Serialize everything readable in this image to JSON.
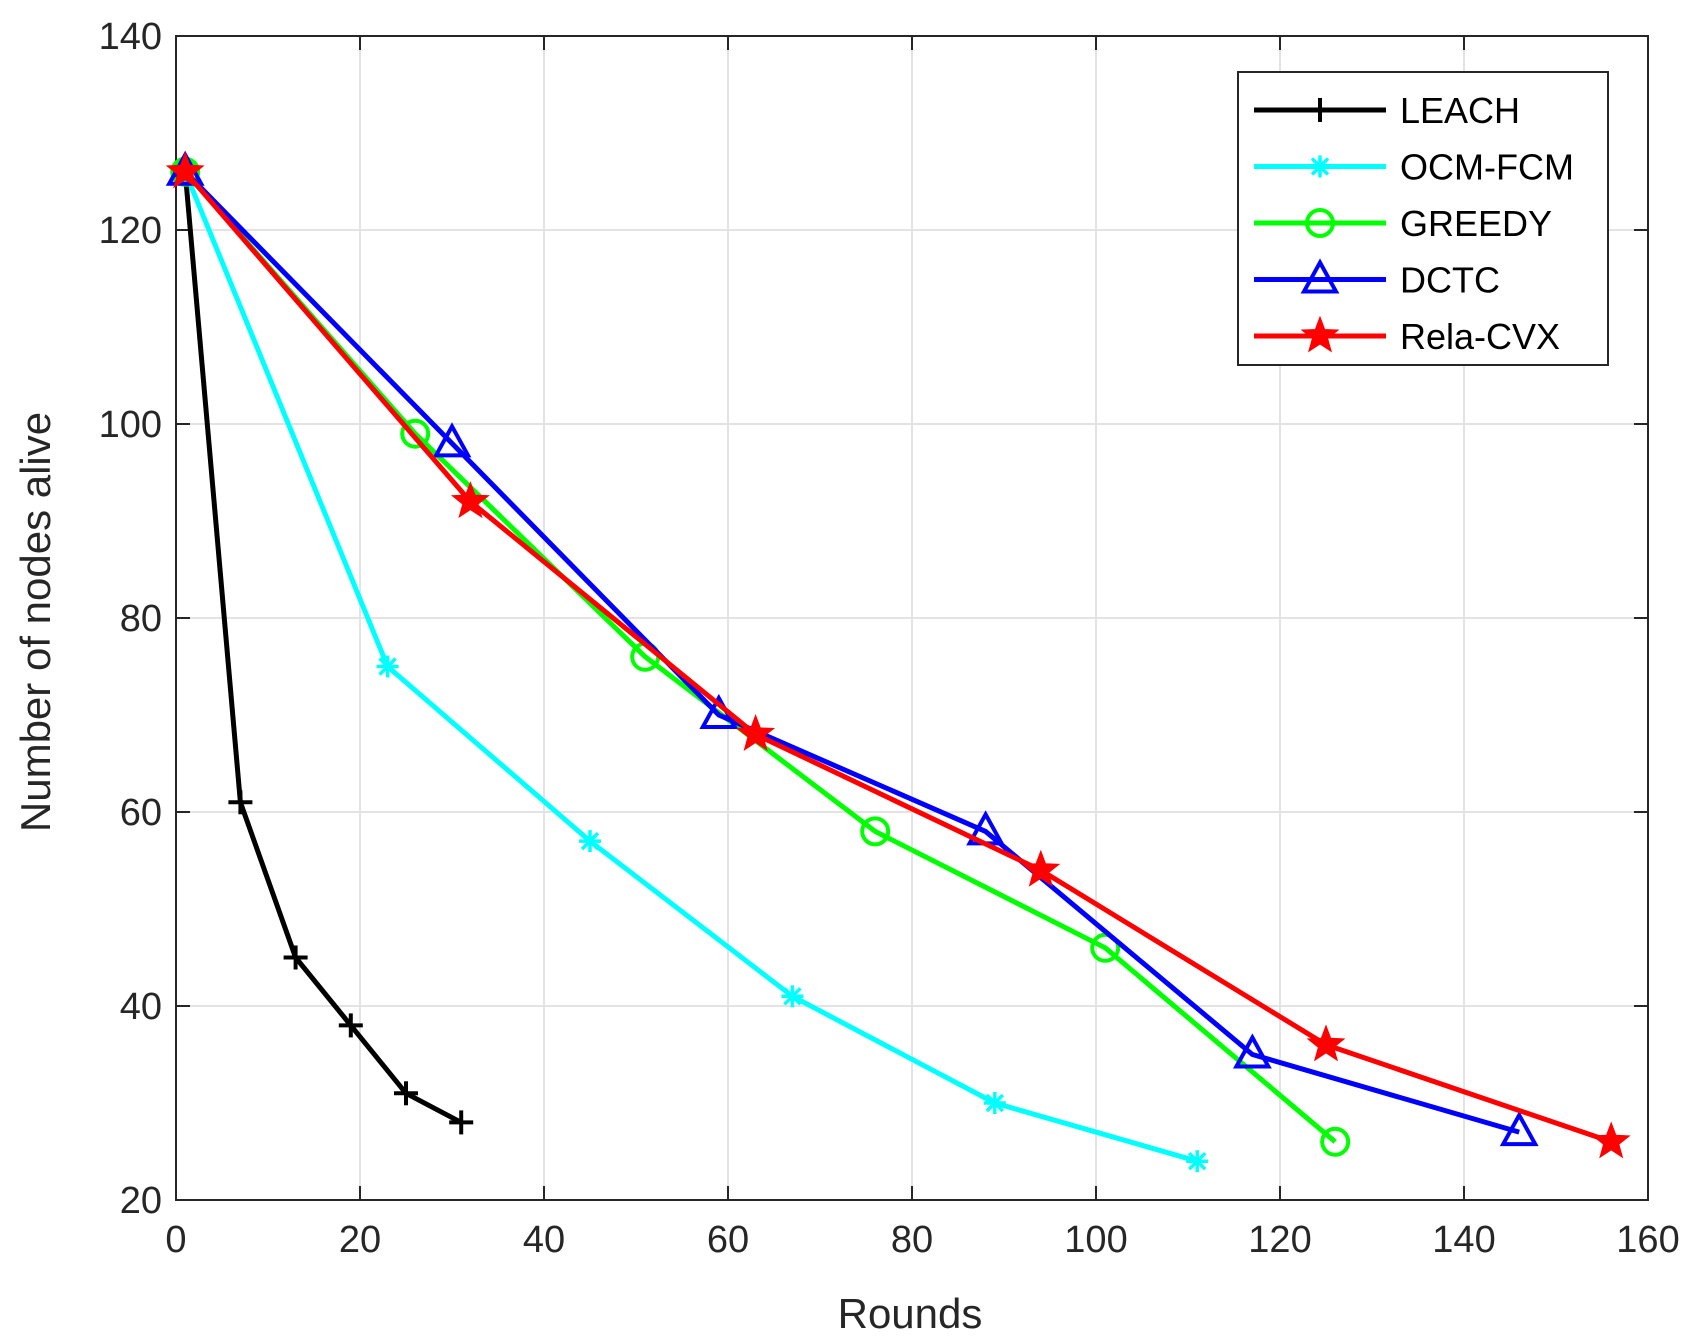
{
  "chart_data": {
    "type": "line",
    "title": "",
    "xlabel": "Rounds",
    "ylabel": "Number of nodes alive",
    "xlim": [
      0,
      160
    ],
    "ylim": [
      20,
      140
    ],
    "xticks": [
      "0",
      "20",
      "40",
      "60",
      "80",
      "100",
      "120",
      "140",
      "160"
    ],
    "yticks": [
      "20",
      "40",
      "60",
      "80",
      "100",
      "120",
      "140"
    ],
    "grid": true,
    "legend_position": "top-right",
    "series": [
      {
        "name": "LEACH",
        "color": "#000000",
        "marker": "plus",
        "x": [
          1,
          7,
          13,
          19,
          25,
          31
        ],
        "y": [
          126,
          61,
          45,
          38,
          31,
          28
        ]
      },
      {
        "name": "OCM-FCM",
        "color": "#00ffff",
        "marker": "asterisk",
        "x": [
          1,
          23,
          45,
          67,
          89,
          111
        ],
        "y": [
          126,
          75,
          57,
          41,
          30,
          24
        ]
      },
      {
        "name": "GREEDY",
        "color": "#00ff00",
        "marker": "circle",
        "x": [
          1,
          26,
          51,
          76,
          101,
          126
        ],
        "y": [
          126,
          99,
          76,
          58,
          46,
          26
        ]
      },
      {
        "name": "DCTC",
        "color": "#0000ff",
        "marker": "triangle",
        "x": [
          1,
          30,
          59,
          88,
          117,
          146
        ],
        "y": [
          126,
          98,
          70,
          58,
          35,
          27
        ]
      },
      {
        "name": "Rela-CVX",
        "color": "#ff0000",
        "marker": "star",
        "x": [
          1,
          32,
          63,
          94,
          125,
          156
        ],
        "y": [
          126,
          92,
          68,
          54,
          36,
          26
        ]
      }
    ]
  }
}
